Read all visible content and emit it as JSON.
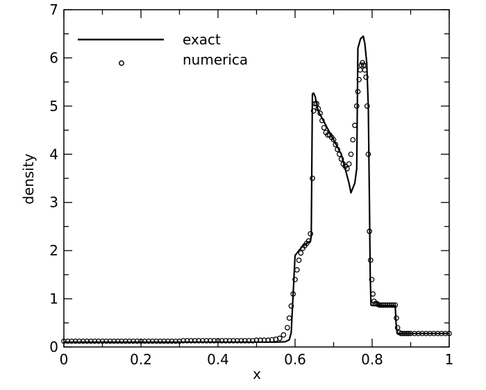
{
  "chart_data": {
    "type": "line",
    "title": "",
    "xlabel": "x",
    "ylabel": "density",
    "xlim": [
      0,
      1
    ],
    "ylim": [
      0,
      7
    ],
    "x_ticks": [
      "0",
      "0.2",
      "0.4",
      "0.6",
      "0.8",
      "1"
    ],
    "y_ticks": [
      "0",
      "1",
      "2",
      "3",
      "4",
      "5",
      "6",
      "7"
    ],
    "grid": false,
    "legend_position": "top-left",
    "series": [
      {
        "name": "exact",
        "style": "solid-line",
        "color": "#000000",
        "x": [
          0,
          0.55,
          0.575,
          0.585,
          0.59,
          0.6,
          0.62,
          0.64,
          0.642,
          0.645,
          0.648,
          0.652,
          0.66,
          0.7,
          0.72,
          0.74,
          0.745,
          0.755,
          0.76,
          0.763,
          0.77,
          0.777,
          0.781,
          0.786,
          0.79,
          0.793,
          0.795,
          0.797,
          0.8,
          0.82,
          0.84,
          0.86,
          0.862,
          0.865,
          1
        ],
        "y": [
          0.1,
          0.1,
          0.11,
          0.15,
          0.3,
          1.9,
          2.1,
          2.2,
          2.3,
          5.25,
          5.27,
          5.2,
          4.9,
          4.3,
          4.0,
          3.4,
          3.2,
          3.4,
          3.7,
          6.2,
          6.4,
          6.45,
          6.3,
          5.9,
          5.0,
          3.0,
          1.5,
          0.87,
          0.86,
          0.86,
          0.86,
          0.86,
          0.5,
          0.28,
          0.28
        ]
      },
      {
        "name": "numerica",
        "style": "open-circle",
        "color": "#000000",
        "x": [
          0,
          0.01,
          0.02,
          0.03,
          0.04,
          0.05,
          0.06,
          0.07,
          0.08,
          0.09,
          0.1,
          0.11,
          0.12,
          0.13,
          0.14,
          0.15,
          0.16,
          0.17,
          0.18,
          0.19,
          0.2,
          0.21,
          0.22,
          0.23,
          0.24,
          0.25,
          0.26,
          0.27,
          0.28,
          0.29,
          0.3,
          0.31,
          0.32,
          0.33,
          0.34,
          0.35,
          0.36,
          0.37,
          0.38,
          0.39,
          0.4,
          0.41,
          0.42,
          0.43,
          0.44,
          0.45,
          0.46,
          0.47,
          0.48,
          0.49,
          0.5,
          0.51,
          0.52,
          0.53,
          0.54,
          0.55,
          0.56,
          0.57,
          0.58,
          0.585,
          0.59,
          0.595,
          0.6,
          0.605,
          0.61,
          0.615,
          0.62,
          0.625,
          0.63,
          0.635,
          0.64,
          0.645,
          0.648,
          0.652,
          0.656,
          0.66,
          0.665,
          0.67,
          0.675,
          0.68,
          0.685,
          0.69,
          0.695,
          0.7,
          0.705,
          0.71,
          0.715,
          0.72,
          0.725,
          0.73,
          0.735,
          0.74,
          0.745,
          0.75,
          0.755,
          0.76,
          0.763,
          0.766,
          0.769,
          0.772,
          0.775,
          0.778,
          0.781,
          0.784,
          0.787,
          0.79,
          0.793,
          0.796,
          0.799,
          0.802,
          0.805,
          0.808,
          0.812,
          0.816,
          0.82,
          0.825,
          0.83,
          0.835,
          0.84,
          0.845,
          0.85,
          0.855,
          0.86,
          0.863,
          0.866,
          0.87,
          0.875,
          0.88,
          0.885,
          0.89,
          0.895,
          0.9,
          0.91,
          0.92,
          0.93,
          0.94,
          0.95,
          0.96,
          0.97,
          0.98,
          0.99,
          1.0
        ],
        "y": [
          0.12,
          0.12,
          0.12,
          0.12,
          0.12,
          0.12,
          0.12,
          0.12,
          0.12,
          0.12,
          0.12,
          0.12,
          0.12,
          0.12,
          0.12,
          0.12,
          0.12,
          0.12,
          0.12,
          0.12,
          0.12,
          0.12,
          0.12,
          0.12,
          0.12,
          0.12,
          0.12,
          0.12,
          0.12,
          0.12,
          0.12,
          0.13,
          0.13,
          0.13,
          0.13,
          0.13,
          0.13,
          0.13,
          0.13,
          0.13,
          0.13,
          0.13,
          0.13,
          0.13,
          0.13,
          0.13,
          0.13,
          0.13,
          0.13,
          0.13,
          0.14,
          0.14,
          0.14,
          0.14,
          0.15,
          0.16,
          0.18,
          0.25,
          0.4,
          0.6,
          0.85,
          1.1,
          1.4,
          1.6,
          1.8,
          1.95,
          2.05,
          2.1,
          2.15,
          2.2,
          2.35,
          3.5,
          4.9,
          5.05,
          5.05,
          4.95,
          4.85,
          4.7,
          4.55,
          4.45,
          4.4,
          4.4,
          4.35,
          4.3,
          4.2,
          4.1,
          4.0,
          3.9,
          3.8,
          3.75,
          3.7,
          3.8,
          4.0,
          4.3,
          4.6,
          5.0,
          5.3,
          5.55,
          5.75,
          5.85,
          5.9,
          5.85,
          5.75,
          5.6,
          5.0,
          4.0,
          2.4,
          1.8,
          1.4,
          1.1,
          0.95,
          0.9,
          0.9,
          0.88,
          0.87,
          0.87,
          0.87,
          0.87,
          0.87,
          0.87,
          0.87,
          0.87,
          0.87,
          0.6,
          0.4,
          0.3,
          0.28,
          0.28,
          0.28,
          0.28,
          0.28,
          0.28,
          0.28,
          0.28,
          0.28,
          0.28,
          0.28,
          0.28,
          0.28,
          0.28,
          0.28,
          0.28
        ]
      }
    ]
  }
}
